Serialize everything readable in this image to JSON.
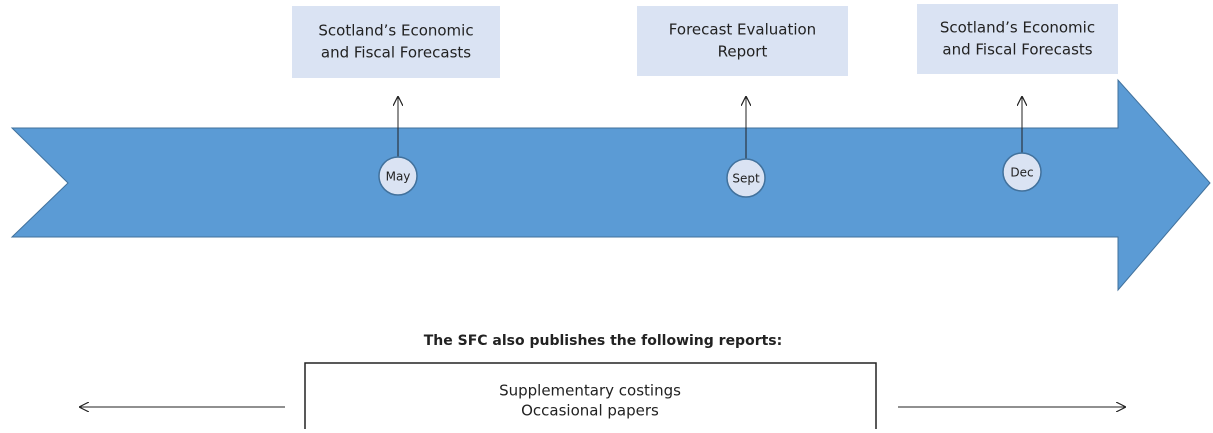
{
  "milestones": [
    {
      "month": "May",
      "report": [
        "Scotland’s Economic",
        "and Fiscal Forecasts"
      ]
    },
    {
      "month": "Sept",
      "report": [
        "Forecast Evaluation",
        "Report"
      ]
    },
    {
      "month": "Dec",
      "report": [
        "Scotland’s Economic",
        "and Fiscal Forecasts"
      ]
    }
  ],
  "other_reports": {
    "heading": "The SFC also publishes the following reports:",
    "items": [
      "Supplementary costings",
      "Occasional papers"
    ]
  }
}
